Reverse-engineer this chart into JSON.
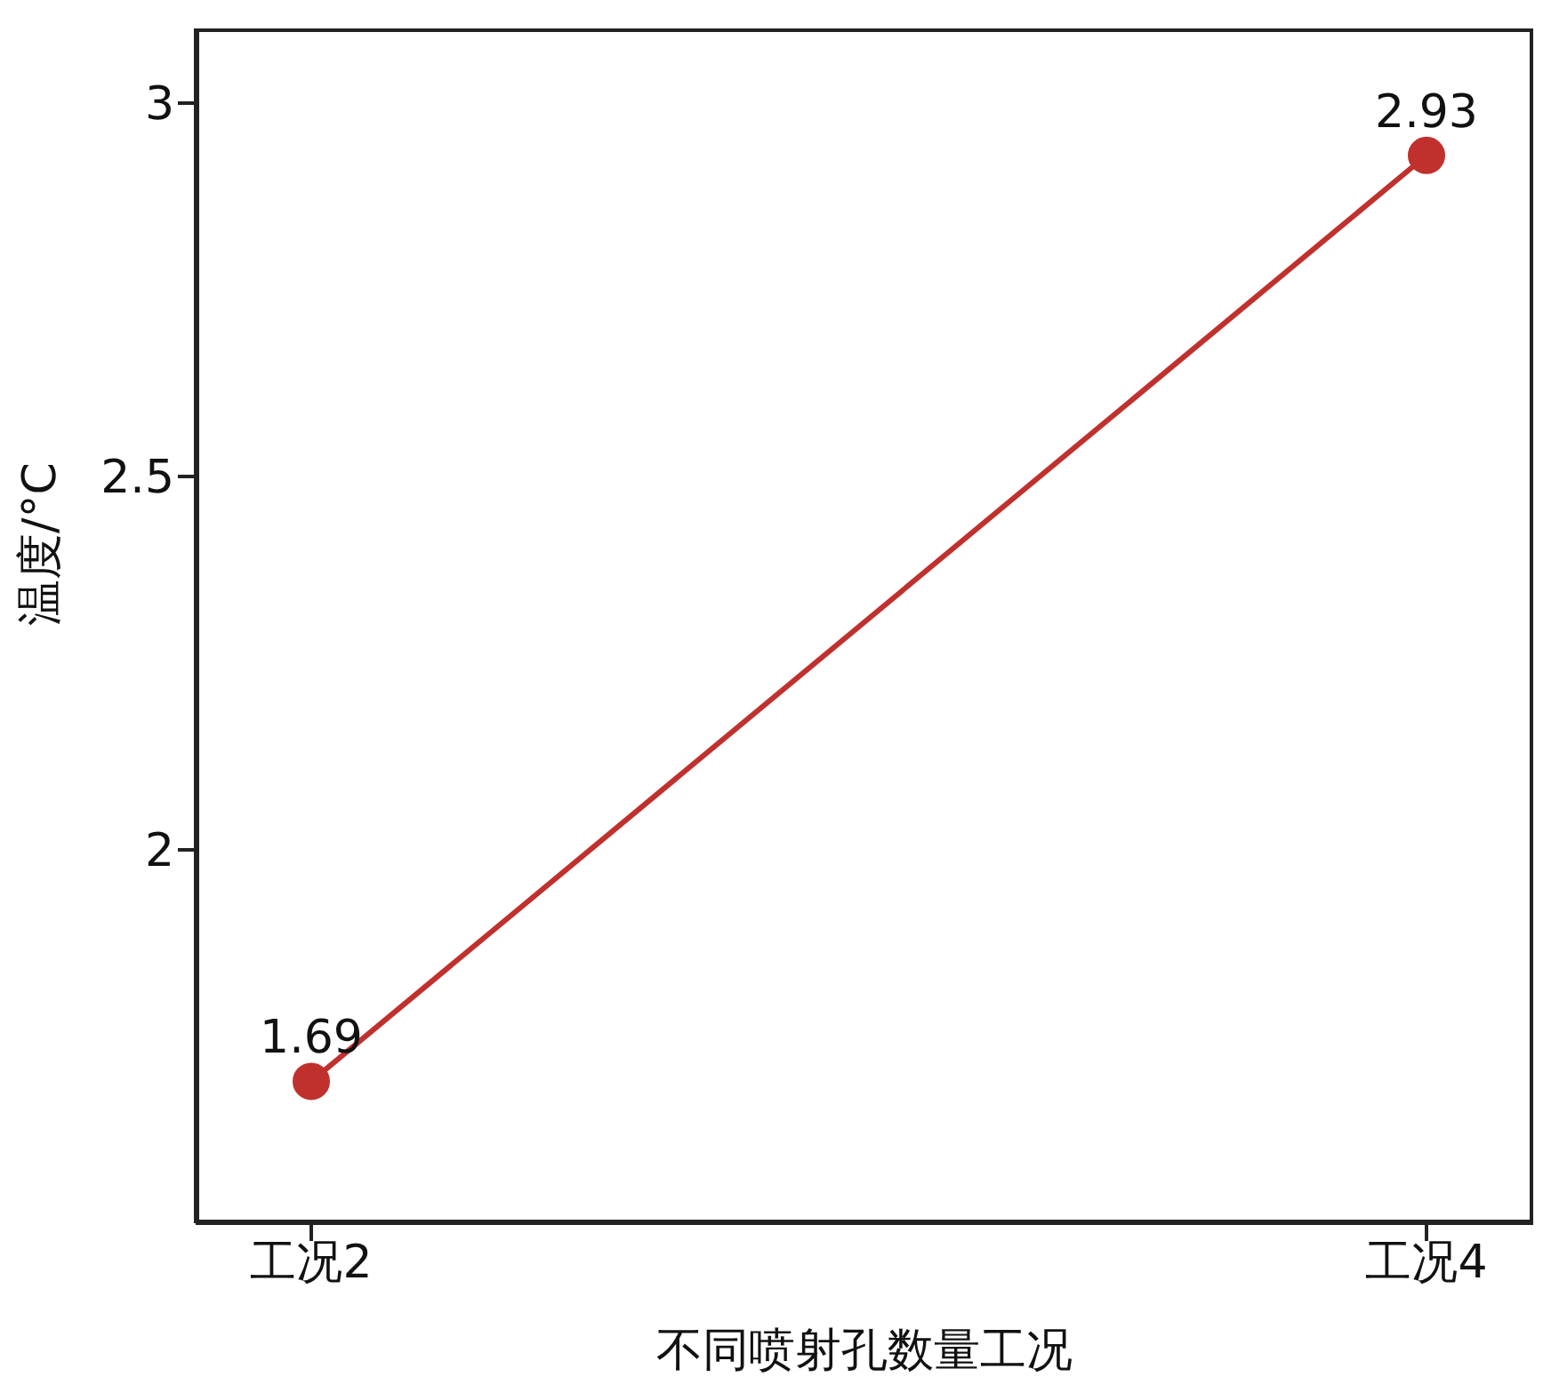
{
  "chart_data": {
    "type": "line",
    "xlabel": "不同喷射孔数量工况",
    "ylabel": "温度/°C",
    "categories": [
      "工况2",
      "工况4"
    ],
    "series": [
      {
        "color": "#c0312e",
        "values": [
          1.69,
          2.93
        ]
      }
    ],
    "ylim": [
      1.5,
      3.1
    ],
    "yticks": [
      2,
      2.5,
      3
    ],
    "marker": "circle",
    "data_labels": true,
    "grid": false,
    "legend": false
  }
}
